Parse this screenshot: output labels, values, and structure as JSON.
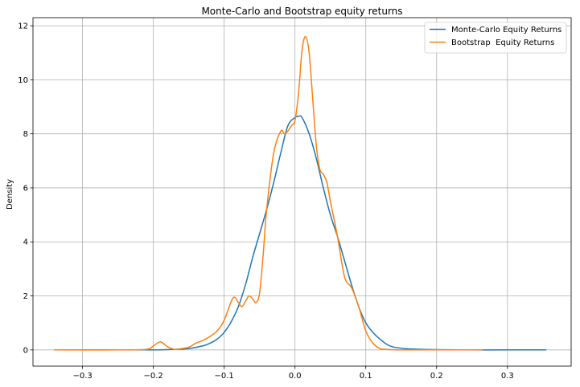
{
  "chart_data": {
    "type": "line",
    "title": "Monte-Carlo and Bootstrap equity returns",
    "xlabel": "",
    "ylabel": "Density",
    "xlim": [
      -0.37,
      0.39
    ],
    "ylim": [
      -0.6,
      12.3
    ],
    "xticks": [
      -0.3,
      -0.2,
      -0.1,
      0.0,
      0.1,
      0.2,
      0.3
    ],
    "xtick_labels": [
      "−0.3",
      "−0.2",
      "−0.1",
      "0.0",
      "0.1",
      "0.2",
      "0.3"
    ],
    "yticks": [
      0,
      2,
      4,
      6,
      8,
      10,
      12
    ],
    "ytick_labels": [
      "0",
      "2",
      "4",
      "6",
      "8",
      "10",
      "12"
    ],
    "grid": true,
    "legend_position": "top-right",
    "series": [
      {
        "name": "Monte-Carlo Equity Returns",
        "color": "#1f77b4",
        "x": [
          -0.34,
          -0.25,
          -0.2,
          -0.17,
          -0.15,
          -0.13,
          -0.12,
          -0.11,
          -0.1,
          -0.09,
          -0.08,
          -0.07,
          -0.06,
          -0.05,
          -0.04,
          -0.03,
          -0.02,
          -0.01,
          0.0,
          0.005,
          0.01,
          0.02,
          0.03,
          0.04,
          0.05,
          0.06,
          0.07,
          0.08,
          0.09,
          0.1,
          0.11,
          0.12,
          0.13,
          0.14,
          0.16,
          0.18,
          0.2,
          0.25,
          0.3,
          0.355
        ],
        "y": [
          0,
          0,
          0,
          0.02,
          0.05,
          0.15,
          0.25,
          0.4,
          0.65,
          1.05,
          1.6,
          2.4,
          3.4,
          4.3,
          5.2,
          6.2,
          7.3,
          8.3,
          8.6,
          8.65,
          8.6,
          8.0,
          7.1,
          6.0,
          5.0,
          4.2,
          3.3,
          2.4,
          1.6,
          1.0,
          0.65,
          0.4,
          0.2,
          0.1,
          0.04,
          0.02,
          0.01,
          0,
          0,
          0
        ]
      },
      {
        "name": "Bootstrap  Equity Returns",
        "color": "#ff7f0e",
        "x": [
          -0.34,
          -0.25,
          -0.21,
          -0.2,
          -0.19,
          -0.18,
          -0.17,
          -0.16,
          -0.15,
          -0.14,
          -0.13,
          -0.12,
          -0.11,
          -0.1,
          -0.09,
          -0.085,
          -0.08,
          -0.075,
          -0.07,
          -0.065,
          -0.06,
          -0.055,
          -0.05,
          -0.045,
          -0.04,
          -0.03,
          -0.02,
          -0.015,
          -0.01,
          -0.005,
          0.0,
          0.005,
          0.01,
          0.015,
          0.02,
          0.025,
          0.03,
          0.035,
          0.04,
          0.045,
          0.05,
          0.06,
          0.07,
          0.08,
          0.09,
          0.1,
          0.11,
          0.12,
          0.13,
          0.15,
          0.2,
          0.265
        ],
        "y": [
          0,
          0,
          0.02,
          0.15,
          0.3,
          0.12,
          0.02,
          0.05,
          0.1,
          0.25,
          0.35,
          0.5,
          0.7,
          1.1,
          1.8,
          1.95,
          1.75,
          1.6,
          1.8,
          2.0,
          1.9,
          1.75,
          2.1,
          3.5,
          5.2,
          7.3,
          8.1,
          8.0,
          8.1,
          8.3,
          8.5,
          9.5,
          11.1,
          11.6,
          11.0,
          9.3,
          7.6,
          6.7,
          6.5,
          6.2,
          5.5,
          4.2,
          2.7,
          2.3,
          1.6,
          0.7,
          0.25,
          0.05,
          0.02,
          0,
          0,
          0
        ]
      }
    ]
  }
}
